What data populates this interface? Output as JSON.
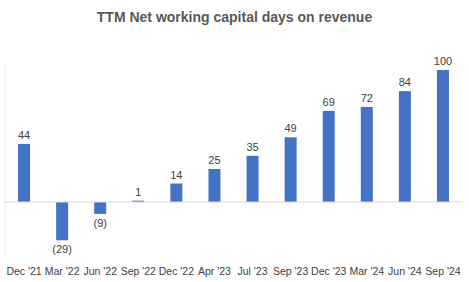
{
  "chart_data": {
    "type": "bar",
    "title": "TTM Net working capital days on revenue",
    "categories": [
      "Dec '21",
      "Mar '22",
      "Jun '22",
      "Sep '22",
      "Dec '22",
      "Apr '23",
      "Jul '23",
      "Sep '23",
      "Dec '23",
      "Mar '24",
      "Jun '24",
      "Sep '24"
    ],
    "values": [
      44,
      -29,
      -9,
      1,
      14,
      25,
      35,
      49,
      69,
      72,
      84,
      100
    ],
    "value_labels": [
      "44",
      "(29)",
      "(9)",
      "1",
      "14",
      "25",
      "35",
      "49",
      "69",
      "72",
      "84",
      "100"
    ],
    "color": "#4472c4",
    "ylim": [
      -40,
      105
    ],
    "yticks": [
      0
    ],
    "grid": false,
    "data_labels": true,
    "tick_labels": "x"
  }
}
